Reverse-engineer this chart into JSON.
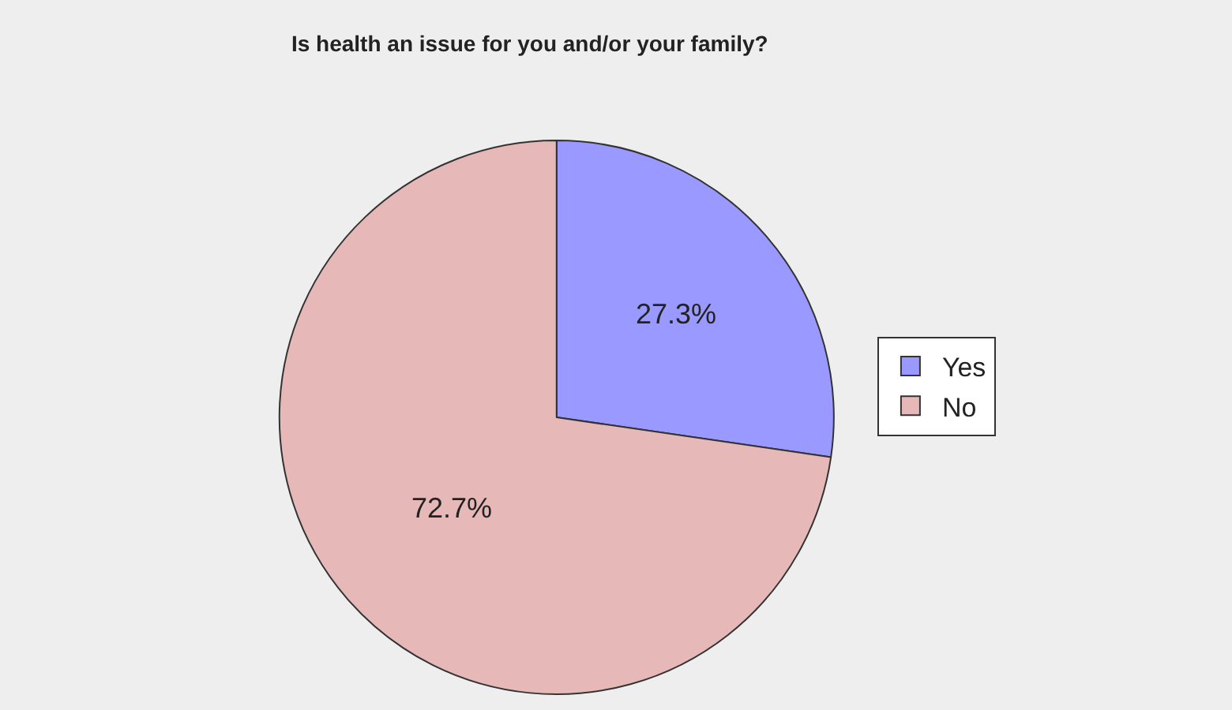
{
  "chart_data": {
    "type": "pie",
    "title": "Is health an issue for you and/or your family?",
    "categories": [
      "Yes",
      "No"
    ],
    "values": [
      27.3,
      72.7
    ],
    "colors": [
      "#9999ff",
      "#e6b8b7"
    ],
    "value_labels": [
      "27.3%",
      "72.7%"
    ],
    "legend": "right"
  }
}
